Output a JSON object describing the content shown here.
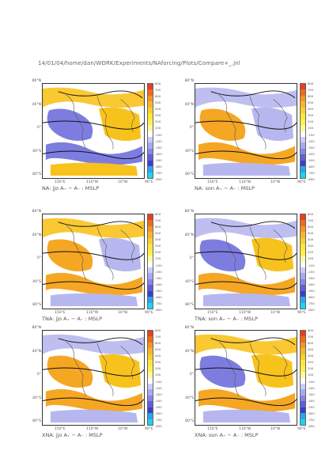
{
  "header": "14/01/04/home/dan/WORK/Experiments/NAforcing/Plots/Compare+_.jnl",
  "lat_labels": [
    "80°N",
    "40°N",
    "0°",
    "40°S",
    "80°S"
  ],
  "lon_labels": [
    "150°E",
    "110°W",
    "10°W",
    "90°E"
  ],
  "colorbar": {
    "ticks": [
      "800",
      "700",
      "600",
      "500",
      "400",
      "300",
      "200",
      "100",
      "-100",
      "-200",
      "-300",
      "-400",
      "-500",
      "-600",
      "-700",
      "-800"
    ],
    "colors": [
      "#e8401c",
      "#f06a1e",
      "#f59427",
      "#f9b52d",
      "#fbd02e",
      "#fde73a",
      "#fff04a",
      "#fff8a0",
      "#ffffff",
      "#ccccff",
      "#a9a9f2",
      "#8686e6",
      "#5f5fd8",
      "#3c3cd0",
      "#2aa6e8",
      "#1bd3f2"
    ]
  },
  "panels": [
    {
      "caption": "NA: jjo A₊ − A₋ : MSLP",
      "palette": [
        "warm",
        "cool",
        "warm",
        "cool",
        "warm"
      ]
    },
    {
      "caption": "NA: son A₊ − A₋ : MSLP",
      "palette": [
        "cool",
        "warm",
        "cool",
        "warm",
        "cool"
      ]
    },
    {
      "caption": "TNA: jjo A₊ − A₋ : MSLP",
      "palette": [
        "warm",
        "warm",
        "cool",
        "warm",
        "cool"
      ]
    },
    {
      "caption": "TNA: son A₊ − A₋ : MSLP",
      "palette": [
        "cool",
        "cool",
        "warm",
        "warm",
        "cool"
      ]
    },
    {
      "caption": "XNA: jjo A₊ − A₋ : MSLP",
      "palette": [
        "cool",
        "warm",
        "warm",
        "warm",
        "cool"
      ]
    },
    {
      "caption": "XNA: son A₊ − A₋ : MSLP",
      "palette": [
        "warm",
        "cool",
        "warm",
        "warm",
        "cool"
      ]
    }
  ]
}
